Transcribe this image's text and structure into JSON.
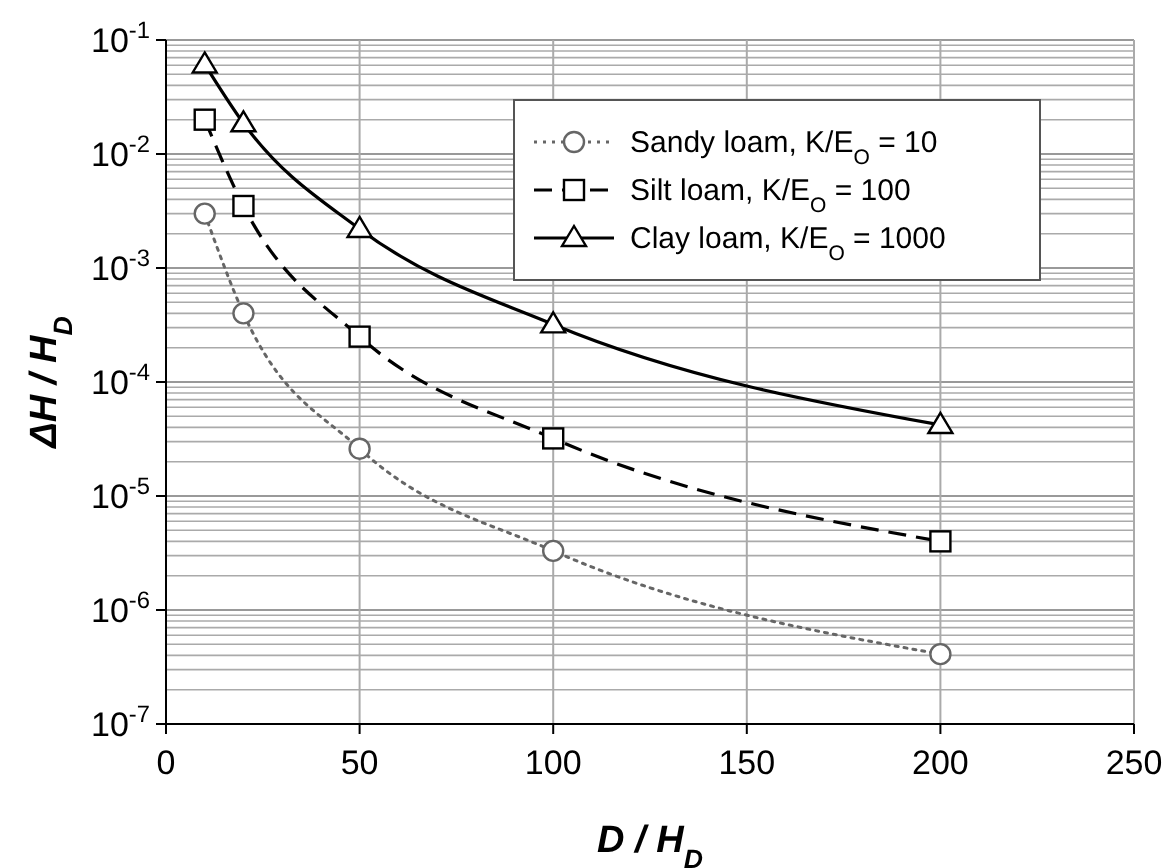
{
  "chart_data": {
    "type": "line",
    "xlabel": "D / H$_{D}$",
    "ylabel": "ΔH / H$_{D}$",
    "x": [
      10,
      20,
      50,
      100,
      200
    ],
    "series": [
      {
        "name": "Sandy loam, K/E$_{O}$ = 10",
        "color": "#666666",
        "marker": "circle",
        "line_style": "dotted",
        "values": [
          0.003,
          0.0004,
          2.6e-05,
          3.3e-06,
          4.1e-07
        ]
      },
      {
        "name": "Silt loam, K/E$_{O}$ = 100",
        "color": "#000000",
        "marker": "square",
        "line_style": "dashed",
        "values": [
          0.02,
          0.0035,
          0.00025,
          3.2e-05,
          4e-06
        ]
      },
      {
        "name": "Clay loam, K/E$_{O}$ = 1000",
        "color": "#000000",
        "marker": "triangle",
        "line_style": "solid",
        "values": [
          0.061,
          0.0186,
          0.0022,
          0.00032,
          4.2e-05
        ]
      }
    ],
    "log": "y",
    "grid": true,
    "legend": "top right",
    "xlim": [
      0,
      250
    ],
    "xticks": [
      0,
      50,
      100,
      150,
      200,
      250
    ],
    "ylim": [
      1e-07,
      0.1
    ],
    "yticks": [
      {
        "value": 1e-07,
        "label": "10$^{-7}$"
      },
      {
        "value": 1e-06,
        "label": "10$^{-6}$"
      },
      {
        "value": 1e-05,
        "label": "10$^{-5}$"
      },
      {
        "value": 0.0001,
        "label": "10$^{-4}$"
      },
      {
        "value": 0.001,
        "label": "10$^{-3}$"
      },
      {
        "value": 0.01,
        "label": "10$^{-2}$"
      },
      {
        "value": 0.1,
        "label": "10$^{-1}$"
      }
    ]
  }
}
